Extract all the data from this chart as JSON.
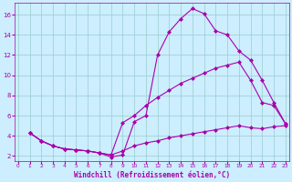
{
  "xlabel": "Windchill (Refroidissement éolien,°C)",
  "bg_color": "#cceeff",
  "grid_color": "#99cccc",
  "line_color": "#aa00aa",
  "line1_x": [
    1,
    2,
    3,
    4,
    5,
    6,
    7,
    8,
    9,
    10,
    11,
    12,
    13,
    14,
    15,
    16,
    17,
    18,
    19,
    20,
    21,
    22,
    23
  ],
  "line1_y": [
    4.3,
    3.5,
    3.0,
    2.7,
    2.6,
    2.5,
    2.3,
    1.9,
    2.1,
    5.4,
    6.0,
    12.0,
    14.3,
    15.6,
    16.6,
    16.1,
    14.4,
    14.0,
    12.4,
    11.5,
    9.5,
    7.3,
    5.2
  ],
  "line2_x": [
    1,
    2,
    3,
    4,
    5,
    6,
    7,
    8,
    9,
    10,
    11,
    12,
    13,
    14,
    15,
    16,
    17,
    18,
    19,
    20,
    21,
    22,
    23
  ],
  "line2_y": [
    4.3,
    3.5,
    3.0,
    2.7,
    2.6,
    2.5,
    2.3,
    2.1,
    5.3,
    6.0,
    7.0,
    7.8,
    8.5,
    9.2,
    9.7,
    10.2,
    10.7,
    11.0,
    11.3,
    9.5,
    7.3,
    7.0,
    5.2
  ],
  "line3_x": [
    1,
    2,
    3,
    4,
    5,
    6,
    7,
    8,
    9,
    10,
    11,
    12,
    13,
    14,
    15,
    16,
    17,
    18,
    19,
    20,
    21,
    22,
    23
  ],
  "line3_y": [
    4.3,
    3.5,
    3.0,
    2.7,
    2.6,
    2.5,
    2.3,
    2.1,
    2.5,
    3.0,
    3.3,
    3.5,
    3.8,
    4.0,
    4.2,
    4.4,
    4.6,
    4.8,
    5.0,
    4.8,
    4.7,
    4.9,
    5.0
  ],
  "xlim": [
    -0.3,
    23.3
  ],
  "ylim": [
    1.5,
    17.2
  ],
  "yticks": [
    2,
    4,
    6,
    8,
    10,
    12,
    14,
    16
  ],
  "xticks": [
    0,
    1,
    2,
    3,
    4,
    5,
    6,
    7,
    8,
    9,
    10,
    11,
    12,
    13,
    14,
    15,
    16,
    17,
    18,
    19,
    20,
    21,
    22,
    23
  ],
  "marker": "D",
  "markersize": 2.0,
  "linewidth": 0.8
}
